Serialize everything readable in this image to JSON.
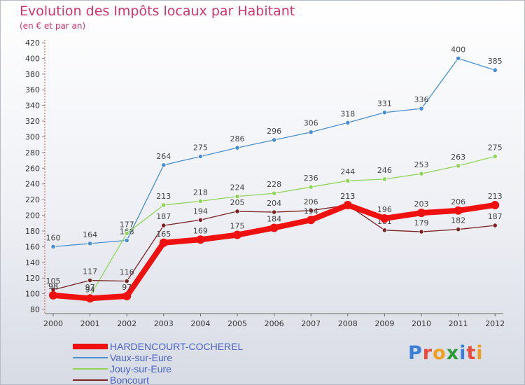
{
  "header": {
    "title": "Evolution des Impôts locaux par Habitant",
    "subtitle": "(en € et par an)"
  },
  "chart_data": {
    "type": "line",
    "title": "Evolution des Impôts locaux par Habitant",
    "subtitle": "(en € et par an)",
    "xlabel": "",
    "ylabel": "",
    "ylim": [
      80,
      420
    ],
    "y_ticks": [
      80,
      100,
      120,
      140,
      160,
      180,
      200,
      220,
      240,
      260,
      280,
      300,
      320,
      340,
      360,
      380,
      400,
      420
    ],
    "grid": false,
    "legend_position": "bottom-left",
    "categories": [
      "2000",
      "2001",
      "2002",
      "2003",
      "2004",
      "2005",
      "2006",
      "2007",
      "2008",
      "2009",
      "2010",
      "2011",
      "2012"
    ],
    "series": [
      {
        "name": "Vaux-sur-Eure",
        "color": "#4a8fd0",
        "values": [
          160,
          164,
          168,
          264,
          275,
          286,
          296,
          306,
          318,
          331,
          336,
          400,
          385
        ]
      },
      {
        "name": "Jouy-sur-Eure",
        "color": "#8fd65a",
        "values": [
          98,
          97,
          177,
          213,
          218,
          224,
          228,
          236,
          244,
          246,
          253,
          263,
          275
        ]
      },
      {
        "name": "Boncourt",
        "color": "#7a2424",
        "values": [
          105,
          117,
          116,
          187,
          194,
          205,
          204,
          206,
          213,
          181,
          179,
          182,
          187
        ]
      },
      {
        "name": "HARDENCOURT-COCHEREL",
        "color": "#ef1010",
        "values": [
          98,
          94,
          97,
          165,
          169,
          175,
          184,
          194,
          213,
          196,
          203,
          206,
          213
        ]
      }
    ],
    "legend": [
      {
        "name": "HARDENCOURT-COCHEREL",
        "color": "#ef1010"
      },
      {
        "name": "Vaux-sur-Eure",
        "color": "#4a8fd0"
      },
      {
        "name": "Jouy-sur-Eure",
        "color": "#8fd65a"
      },
      {
        "name": "Boncourt",
        "color": "#7a2424"
      }
    ]
  },
  "logo": {
    "text": "Proxiti",
    "letters": [
      "P",
      "r",
      "o",
      "x",
      "i",
      "t",
      "i"
    ],
    "colors": [
      "#3b7fd6",
      "#e94a3c",
      "#f0a020",
      "#2f9a3a",
      "#3b7fd6",
      "#e94a3c",
      "#f0a020"
    ]
  }
}
